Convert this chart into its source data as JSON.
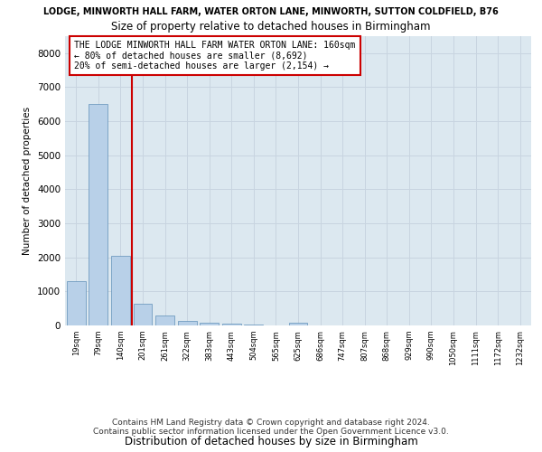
{
  "title_top": "LODGE, MINWORTH HALL FARM, WATER ORTON LANE, MINWORTH, SUTTON COLDFIELD, B76",
  "title": "Size of property relative to detached houses in Birmingham",
  "xlabel": "Distribution of detached houses by size in Birmingham",
  "ylabel": "Number of detached properties",
  "categories": [
    "19sqm",
    "79sqm",
    "140sqm",
    "201sqm",
    "261sqm",
    "322sqm",
    "383sqm",
    "443sqm",
    "504sqm",
    "565sqm",
    "625sqm",
    "686sqm",
    "747sqm",
    "807sqm",
    "868sqm",
    "929sqm",
    "990sqm",
    "1050sqm",
    "1111sqm",
    "1172sqm",
    "1232sqm"
  ],
  "values": [
    1300,
    6500,
    2050,
    650,
    290,
    130,
    75,
    50,
    30,
    10,
    70,
    0,
    0,
    0,
    0,
    0,
    0,
    0,
    0,
    0,
    0
  ],
  "bar_color": "#b8d0e8",
  "bar_edge_color": "#6090b8",
  "vline_color": "#cc0000",
  "vline_label": "THE LODGE MINWORTH HALL FARM WATER ORTON LANE: 160sqm",
  "annotation_line2": "← 80% of detached houses are smaller (8,692)",
  "annotation_line3": "20% of semi-detached houses are larger (2,154) →",
  "ylim": [
    0,
    8500
  ],
  "yticks": [
    0,
    1000,
    2000,
    3000,
    4000,
    5000,
    6000,
    7000,
    8000
  ],
  "grid_color": "#c8d4e0",
  "bg_color": "#dce8f0",
  "footnote1": "Contains HM Land Registry data © Crown copyright and database right 2024.",
  "footnote2": "Contains public sector information licensed under the Open Government Licence v3.0."
}
